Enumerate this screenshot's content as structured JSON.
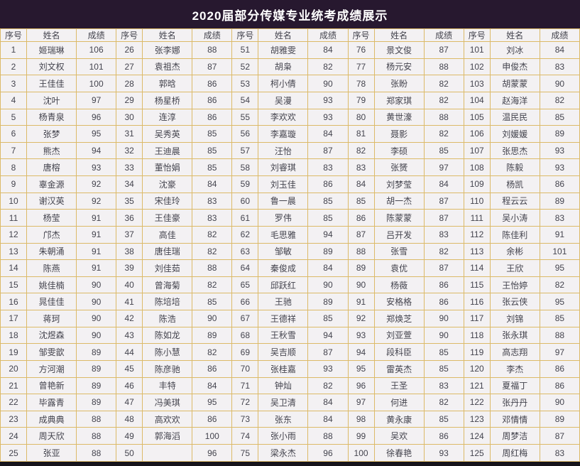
{
  "title": "2020届部分传媒专业统考成绩展示",
  "colors": {
    "title_bg": "#27182f",
    "title_text": "#ffffff",
    "cell_border": "#dcba68",
    "cell_bg": "#f3f1f3",
    "cell_text": "#44444e",
    "bottom_strip": "#15131a"
  },
  "table": {
    "column_headers": [
      "序号",
      "姓名",
      "成绩"
    ],
    "header_repeat": 5,
    "rows_per_group": 25,
    "entries": [
      {
        "no": "1",
        "name": "姬瑞琳",
        "score": "106"
      },
      {
        "no": "2",
        "name": "刘文权",
        "score": "101"
      },
      {
        "no": "3",
        "name": "王佳佳",
        "score": "100"
      },
      {
        "no": "4",
        "name": "沈叶",
        "score": "97"
      },
      {
        "no": "5",
        "name": "杨青泉",
        "score": "96"
      },
      {
        "no": "6",
        "name": "张梦",
        "score": "95"
      },
      {
        "no": "7",
        "name": "熊杰",
        "score": "94"
      },
      {
        "no": "8",
        "name": "唐榕",
        "score": "93"
      },
      {
        "no": "9",
        "name": "辜金源",
        "score": "92"
      },
      {
        "no": "10",
        "name": "谢汉英",
        "score": "92"
      },
      {
        "no": "11",
        "name": "杨莹",
        "score": "91"
      },
      {
        "no": "12",
        "name": "邝杰",
        "score": "91"
      },
      {
        "no": "13",
        "name": "朱朝涌",
        "score": "91"
      },
      {
        "no": "14",
        "name": "陈燕",
        "score": "91"
      },
      {
        "no": "15",
        "name": "姚佳楠",
        "score": "90"
      },
      {
        "no": "16",
        "name": "晁佳佳",
        "score": "90"
      },
      {
        "no": "17",
        "name": "蒋珂",
        "score": "90"
      },
      {
        "no": "18",
        "name": "沈煜森",
        "score": "90"
      },
      {
        "no": "19",
        "name": "邹雯歆",
        "score": "89"
      },
      {
        "no": "20",
        "name": "方河潮",
        "score": "89"
      },
      {
        "no": "21",
        "name": "曾艳新",
        "score": "89"
      },
      {
        "no": "22",
        "name": "毕露青",
        "score": "89"
      },
      {
        "no": "23",
        "name": "成典典",
        "score": "88"
      },
      {
        "no": "24",
        "name": "周天欣",
        "score": "88"
      },
      {
        "no": "25",
        "name": "张亚",
        "score": "88"
      },
      {
        "no": "26",
        "name": "张李娜",
        "score": "88"
      },
      {
        "no": "27",
        "name": "袁祖杰",
        "score": "87"
      },
      {
        "no": "28",
        "name": "郭晗",
        "score": "86"
      },
      {
        "no": "29",
        "name": "杨星桥",
        "score": "86"
      },
      {
        "no": "30",
        "name": "连淳",
        "score": "86"
      },
      {
        "no": "31",
        "name": "吴秀英",
        "score": "85"
      },
      {
        "no": "32",
        "name": "王迪晨",
        "score": "85"
      },
      {
        "no": "33",
        "name": "董怡娟",
        "score": "85"
      },
      {
        "no": "34",
        "name": "沈豪",
        "score": "84"
      },
      {
        "no": "35",
        "name": "宋佳玲",
        "score": "83"
      },
      {
        "no": "36",
        "name": "王佳豪",
        "score": "83"
      },
      {
        "no": "37",
        "name": "高佳",
        "score": "82"
      },
      {
        "no": "38",
        "name": "唐佳瑞",
        "score": "82"
      },
      {
        "no": "39",
        "name": "刘佳茹",
        "score": "88"
      },
      {
        "no": "40",
        "name": "曾海菊",
        "score": "82"
      },
      {
        "no": "41",
        "name": "陈培培",
        "score": "85"
      },
      {
        "no": "42",
        "name": "陈浩",
        "score": "90"
      },
      {
        "no": "43",
        "name": "陈如龙",
        "score": "89"
      },
      {
        "no": "44",
        "name": "陈小慧",
        "score": "82"
      },
      {
        "no": "45",
        "name": "陈彦驰",
        "score": "86"
      },
      {
        "no": "46",
        "name": "丰特",
        "score": "84"
      },
      {
        "no": "47",
        "name": "冯美琪",
        "score": "95"
      },
      {
        "no": "48",
        "name": "高欢欢",
        "score": "86"
      },
      {
        "no": "49",
        "name": "郭海滔",
        "score": "100"
      },
      {
        "no": "50",
        "name": "",
        "score": "96"
      },
      {
        "no": "51",
        "name": "胡雅雯",
        "score": "84"
      },
      {
        "no": "52",
        "name": "胡枭",
        "score": "82"
      },
      {
        "no": "53",
        "name": "柯小倩",
        "score": "90"
      },
      {
        "no": "54",
        "name": "吴漫",
        "score": "93"
      },
      {
        "no": "55",
        "name": "李欢欢",
        "score": "93"
      },
      {
        "no": "56",
        "name": "李嘉璇",
        "score": "84"
      },
      {
        "no": "57",
        "name": "汪怡",
        "score": "87"
      },
      {
        "no": "58",
        "name": "刘睿琪",
        "score": "83"
      },
      {
        "no": "59",
        "name": "刘玉佳",
        "score": "86"
      },
      {
        "no": "60",
        "name": "鲁一晨",
        "score": "85"
      },
      {
        "no": "61",
        "name": "罗伟",
        "score": "85"
      },
      {
        "no": "62",
        "name": "毛思雅",
        "score": "94"
      },
      {
        "no": "63",
        "name": "邹敏",
        "score": "89"
      },
      {
        "no": "64",
        "name": "秦俊成",
        "score": "84"
      },
      {
        "no": "65",
        "name": "邱跃红",
        "score": "90"
      },
      {
        "no": "66",
        "name": "王驰",
        "score": "89"
      },
      {
        "no": "67",
        "name": "王德祥",
        "score": "85"
      },
      {
        "no": "68",
        "name": "王秋雪",
        "score": "94"
      },
      {
        "no": "69",
        "name": "吴吉顺",
        "score": "87"
      },
      {
        "no": "70",
        "name": "张桂嘉",
        "score": "93"
      },
      {
        "no": "71",
        "name": "钟灿",
        "score": "82"
      },
      {
        "no": "72",
        "name": "吴卫清",
        "score": "84"
      },
      {
        "no": "73",
        "name": "张东",
        "score": "84"
      },
      {
        "no": "74",
        "name": "张小雨",
        "score": "88"
      },
      {
        "no": "75",
        "name": "梁永杰",
        "score": "96"
      },
      {
        "no": "76",
        "name": "景文俊",
        "score": "87"
      },
      {
        "no": "77",
        "name": "杨元安",
        "score": "88"
      },
      {
        "no": "78",
        "name": "张盼",
        "score": "82"
      },
      {
        "no": "79",
        "name": "郑家琪",
        "score": "82"
      },
      {
        "no": "80",
        "name": "黄世濠",
        "score": "88"
      },
      {
        "no": "81",
        "name": "聂影",
        "score": "82"
      },
      {
        "no": "82",
        "name": "李硕",
        "score": "85"
      },
      {
        "no": "83",
        "name": "张赟",
        "score": "97"
      },
      {
        "no": "84",
        "name": "刘梦莹",
        "score": "84"
      },
      {
        "no": "85",
        "name": "胡一杰",
        "score": "87"
      },
      {
        "no": "86",
        "name": "陈蒙蒙",
        "score": "87"
      },
      {
        "no": "87",
        "name": "吕开发",
        "score": "83"
      },
      {
        "no": "88",
        "name": "张雪",
        "score": "82"
      },
      {
        "no": "89",
        "name": "袁优",
        "score": "87"
      },
      {
        "no": "90",
        "name": "杨薇",
        "score": "86"
      },
      {
        "no": "91",
        "name": "安格格",
        "score": "86"
      },
      {
        "no": "92",
        "name": "郑焕芝",
        "score": "90"
      },
      {
        "no": "93",
        "name": "刘亚萱",
        "score": "90"
      },
      {
        "no": "94",
        "name": "段科臣",
        "score": "85"
      },
      {
        "no": "95",
        "name": "雷英杰",
        "score": "85"
      },
      {
        "no": "96",
        "name": "王圣",
        "score": "83"
      },
      {
        "no": "97",
        "name": "何进",
        "score": "82"
      },
      {
        "no": "98",
        "name": "黄永康",
        "score": "85"
      },
      {
        "no": "99",
        "name": "吴欢",
        "score": "86"
      },
      {
        "no": "100",
        "name": "徐春艳",
        "score": "93"
      },
      {
        "no": "101",
        "name": "刘冰",
        "score": "84"
      },
      {
        "no": "102",
        "name": "申俊杰",
        "score": "83"
      },
      {
        "no": "103",
        "name": "胡蒙蒙",
        "score": "90"
      },
      {
        "no": "104",
        "name": "赵海洋",
        "score": "82"
      },
      {
        "no": "105",
        "name": "温民民",
        "score": "85"
      },
      {
        "no": "106",
        "name": "刘媛媛",
        "score": "89"
      },
      {
        "no": "107",
        "name": "张思杰",
        "score": "93"
      },
      {
        "no": "108",
        "name": "陈毅",
        "score": "93"
      },
      {
        "no": "109",
        "name": "杨凯",
        "score": "86"
      },
      {
        "no": "110",
        "name": "程云云",
        "score": "89"
      },
      {
        "no": "111",
        "name": "吴小涛",
        "score": "83"
      },
      {
        "no": "112",
        "name": "陈佳利",
        "score": "91"
      },
      {
        "no": "113",
        "name": "余彬",
        "score": "101"
      },
      {
        "no": "114",
        "name": "王欣",
        "score": "95"
      },
      {
        "no": "115",
        "name": "王怡婷",
        "score": "82"
      },
      {
        "no": "116",
        "name": "张云侠",
        "score": "95"
      },
      {
        "no": "117",
        "name": "刘锦",
        "score": "85"
      },
      {
        "no": "118",
        "name": "张永琪",
        "score": "88"
      },
      {
        "no": "119",
        "name": "高志翔",
        "score": "97"
      },
      {
        "no": "120",
        "name": "李杰",
        "score": "86"
      },
      {
        "no": "121",
        "name": "夏福丁",
        "score": "86"
      },
      {
        "no": "122",
        "name": "张丹丹",
        "score": "90"
      },
      {
        "no": "123",
        "name": "邓情情",
        "score": "89"
      },
      {
        "no": "124",
        "name": "周梦洁",
        "score": "87"
      },
      {
        "no": "125",
        "name": "周红梅",
        "score": "83"
      }
    ]
  }
}
